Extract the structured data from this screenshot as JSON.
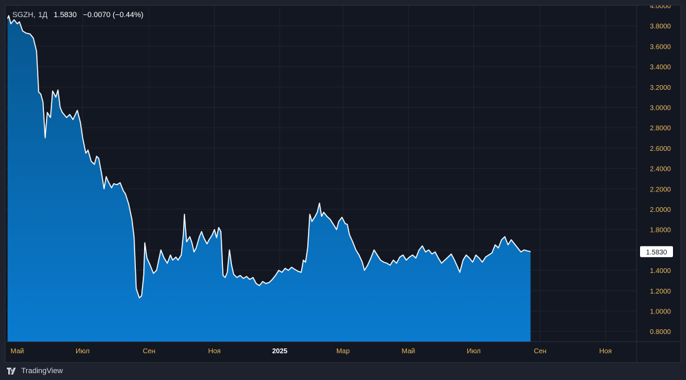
{
  "header": {
    "symbol": "SGZH",
    "interval": "1Д",
    "price": "1.5830",
    "change": "−0.0070 (−0.44%)"
  },
  "footer": {
    "brand": "TradingView"
  },
  "colors": {
    "background": "#131722",
    "line": "#ffffff",
    "fill_top": "#07578f",
    "fill_bottom": "#0a7bd0",
    "axis_text": "#e8b75a",
    "grid": "#1f2330"
  },
  "chart_data": {
    "type": "area",
    "ylim": [
      0.7,
      4.0
    ],
    "y_ticks": [
      "4.0000",
      "3.8000",
      "3.6000",
      "3.4000",
      "3.2000",
      "3.0000",
      "2.8000",
      "2.6000",
      "2.4000",
      "2.2000",
      "2.0000",
      "1.8000",
      "1.6000",
      "1.4000",
      "1.2000",
      "1.0000",
      "0.8000"
    ],
    "x_ticks": [
      "Май",
      "Июл",
      "Сен",
      "Ноя",
      "2025",
      "Мар",
      "Май",
      "Июл",
      "Сен",
      "Ноя"
    ],
    "last_value_label": "1.5830",
    "x_range": [
      "2024-04-20",
      "2025-11-30"
    ],
    "x_tick_dates": [
      "2024-05-01",
      "2024-07-01",
      "2024-09-01",
      "2024-11-01",
      "2025-01-01",
      "2025-03-01",
      "2025-05-01",
      "2025-07-01",
      "2025-09-01",
      "2025-11-01"
    ],
    "series": [
      {
        "points": [
          [
            "2024-04-22",
            3.87
          ],
          [
            "2024-04-23",
            3.9
          ],
          [
            "2024-04-25",
            3.82
          ],
          [
            "2024-04-28",
            3.86
          ],
          [
            "2024-05-01",
            3.82
          ],
          [
            "2024-05-03",
            3.84
          ],
          [
            "2024-05-06",
            3.75
          ],
          [
            "2024-05-09",
            3.73
          ],
          [
            "2024-05-13",
            3.72
          ],
          [
            "2024-05-16",
            3.68
          ],
          [
            "2024-05-19",
            3.55
          ],
          [
            "2024-05-21",
            3.15
          ],
          [
            "2024-05-23",
            3.13
          ],
          [
            "2024-05-25",
            3.05
          ],
          [
            "2024-05-27",
            2.7
          ],
          [
            "2024-05-29",
            2.95
          ],
          [
            "2024-06-01",
            2.9
          ],
          [
            "2024-06-03",
            3.16
          ],
          [
            "2024-06-06",
            3.1
          ],
          [
            "2024-06-08",
            3.17
          ],
          [
            "2024-06-10",
            3.0
          ],
          [
            "2024-06-12",
            2.95
          ],
          [
            "2024-06-16",
            2.9
          ],
          [
            "2024-06-19",
            2.93
          ],
          [
            "2024-06-22",
            2.88
          ],
          [
            "2024-06-26",
            2.97
          ],
          [
            "2024-06-29",
            2.85
          ],
          [
            "2024-07-01",
            2.7
          ],
          [
            "2024-07-04",
            2.55
          ],
          [
            "2024-07-06",
            2.58
          ],
          [
            "2024-07-09",
            2.47
          ],
          [
            "2024-07-12",
            2.44
          ],
          [
            "2024-07-14",
            2.52
          ],
          [
            "2024-07-16",
            2.5
          ],
          [
            "2024-07-19",
            2.33
          ],
          [
            "2024-07-21",
            2.2
          ],
          [
            "2024-07-23",
            2.32
          ],
          [
            "2024-07-25",
            2.27
          ],
          [
            "2024-07-28",
            2.21
          ],
          [
            "2024-07-30",
            2.25
          ],
          [
            "2024-08-02",
            2.24
          ],
          [
            "2024-08-05",
            2.26
          ],
          [
            "2024-08-08",
            2.18
          ],
          [
            "2024-08-10",
            2.15
          ],
          [
            "2024-08-13",
            2.05
          ],
          [
            "2024-08-16",
            1.9
          ],
          [
            "2024-08-18",
            1.73
          ],
          [
            "2024-08-20",
            1.22
          ],
          [
            "2024-08-23",
            1.13
          ],
          [
            "2024-08-25",
            1.15
          ],
          [
            "2024-08-27",
            1.35
          ],
          [
            "2024-08-28",
            1.67
          ],
          [
            "2024-08-30",
            1.52
          ],
          [
            "2024-09-02",
            1.45
          ],
          [
            "2024-09-05",
            1.37
          ],
          [
            "2024-09-08",
            1.4
          ],
          [
            "2024-09-10",
            1.5
          ],
          [
            "2024-09-12",
            1.6
          ],
          [
            "2024-09-15",
            1.52
          ],
          [
            "2024-09-18",
            1.47
          ],
          [
            "2024-09-21",
            1.55
          ],
          [
            "2024-09-23",
            1.5
          ],
          [
            "2024-09-26",
            1.53
          ],
          [
            "2024-09-28",
            1.5
          ],
          [
            "2024-10-01",
            1.55
          ],
          [
            "2024-10-03",
            1.75
          ],
          [
            "2024-10-04",
            1.95
          ],
          [
            "2024-10-06",
            1.68
          ],
          [
            "2024-10-09",
            1.73
          ],
          [
            "2024-10-11",
            1.67
          ],
          [
            "2024-10-13",
            1.58
          ],
          [
            "2024-10-15",
            1.62
          ],
          [
            "2024-10-18",
            1.73
          ],
          [
            "2024-10-20",
            1.78
          ],
          [
            "2024-10-22",
            1.72
          ],
          [
            "2024-10-25",
            1.66
          ],
          [
            "2024-10-27",
            1.7
          ],
          [
            "2024-10-30",
            1.75
          ],
          [
            "2024-11-01",
            1.8
          ],
          [
            "2024-11-03",
            1.72
          ],
          [
            "2024-11-05",
            1.82
          ],
          [
            "2024-11-07",
            1.78
          ],
          [
            "2024-11-09",
            1.35
          ],
          [
            "2024-11-11",
            1.33
          ],
          [
            "2024-11-13",
            1.38
          ],
          [
            "2024-11-15",
            1.6
          ],
          [
            "2024-11-17",
            1.45
          ],
          [
            "2024-11-19",
            1.36
          ],
          [
            "2024-11-22",
            1.33
          ],
          [
            "2024-11-25",
            1.35
          ],
          [
            "2024-11-28",
            1.32
          ],
          [
            "2024-12-01",
            1.34
          ],
          [
            "2024-12-04",
            1.31
          ],
          [
            "2024-12-07",
            1.33
          ],
          [
            "2024-12-10",
            1.27
          ],
          [
            "2024-12-13",
            1.25
          ],
          [
            "2024-12-16",
            1.29
          ],
          [
            "2024-12-19",
            1.27
          ],
          [
            "2024-12-22",
            1.28
          ],
          [
            "2024-12-25",
            1.31
          ],
          [
            "2024-12-28",
            1.35
          ],
          [
            "2024-12-31",
            1.4
          ],
          [
            "2025-01-03",
            1.38
          ],
          [
            "2025-01-06",
            1.42
          ],
          [
            "2025-01-09",
            1.4
          ],
          [
            "2025-01-12",
            1.43
          ],
          [
            "2025-01-15",
            1.41
          ],
          [
            "2025-01-18",
            1.39
          ],
          [
            "2025-01-21",
            1.38
          ],
          [
            "2025-01-23",
            1.5
          ],
          [
            "2025-01-25",
            1.48
          ],
          [
            "2025-01-27",
            1.62
          ],
          [
            "2025-01-29",
            1.95
          ],
          [
            "2025-01-31",
            1.88
          ],
          [
            "2025-02-03",
            1.93
          ],
          [
            "2025-02-05",
            1.97
          ],
          [
            "2025-02-07",
            2.06
          ],
          [
            "2025-02-09",
            1.93
          ],
          [
            "2025-02-11",
            1.97
          ],
          [
            "2025-02-14",
            1.93
          ],
          [
            "2025-02-17",
            1.9
          ],
          [
            "2025-02-20",
            1.85
          ],
          [
            "2025-02-23",
            1.8
          ],
          [
            "2025-02-25",
            1.88
          ],
          [
            "2025-02-28",
            1.92
          ],
          [
            "2025-03-03",
            1.86
          ],
          [
            "2025-03-05",
            1.85
          ],
          [
            "2025-03-07",
            1.75
          ],
          [
            "2025-03-10",
            1.68
          ],
          [
            "2025-03-13",
            1.6
          ],
          [
            "2025-03-16",
            1.55
          ],
          [
            "2025-03-19",
            1.48
          ],
          [
            "2025-03-21",
            1.4
          ],
          [
            "2025-03-24",
            1.45
          ],
          [
            "2025-03-27",
            1.52
          ],
          [
            "2025-03-30",
            1.6
          ],
          [
            "2025-04-02",
            1.55
          ],
          [
            "2025-04-05",
            1.5
          ],
          [
            "2025-04-08",
            1.48
          ],
          [
            "2025-04-11",
            1.47
          ],
          [
            "2025-04-14",
            1.45
          ],
          [
            "2025-04-17",
            1.5
          ],
          [
            "2025-04-20",
            1.47
          ],
          [
            "2025-04-23",
            1.53
          ],
          [
            "2025-04-26",
            1.55
          ],
          [
            "2025-04-29",
            1.5
          ],
          [
            "2025-05-02",
            1.53
          ],
          [
            "2025-05-05",
            1.55
          ],
          [
            "2025-05-08",
            1.52
          ],
          [
            "2025-05-11",
            1.6
          ],
          [
            "2025-05-14",
            1.64
          ],
          [
            "2025-05-17",
            1.58
          ],
          [
            "2025-05-20",
            1.6
          ],
          [
            "2025-05-23",
            1.56
          ],
          [
            "2025-05-26",
            1.58
          ],
          [
            "2025-05-29",
            1.52
          ],
          [
            "2025-06-01",
            1.47
          ],
          [
            "2025-06-04",
            1.5
          ],
          [
            "2025-06-07",
            1.53
          ],
          [
            "2025-06-10",
            1.56
          ],
          [
            "2025-06-13",
            1.5
          ],
          [
            "2025-06-16",
            1.43
          ],
          [
            "2025-06-18",
            1.38
          ],
          [
            "2025-06-21",
            1.5
          ],
          [
            "2025-06-24",
            1.55
          ],
          [
            "2025-06-27",
            1.52
          ],
          [
            "2025-06-30",
            1.48
          ],
          [
            "2025-07-03",
            1.55
          ],
          [
            "2025-07-06",
            1.52
          ],
          [
            "2025-07-09",
            1.48
          ],
          [
            "2025-07-12",
            1.53
          ],
          [
            "2025-07-15",
            1.55
          ],
          [
            "2025-07-18",
            1.57
          ],
          [
            "2025-07-21",
            1.65
          ],
          [
            "2025-07-24",
            1.62
          ],
          [
            "2025-07-27",
            1.7
          ],
          [
            "2025-07-30",
            1.73
          ],
          [
            "2025-08-02",
            1.65
          ],
          [
            "2025-08-05",
            1.7
          ],
          [
            "2025-08-08",
            1.66
          ],
          [
            "2025-08-11",
            1.62
          ],
          [
            "2025-08-14",
            1.58
          ],
          [
            "2025-08-17",
            1.6
          ],
          [
            "2025-08-20",
            1.59
          ],
          [
            "2025-08-23",
            1.583
          ]
        ]
      }
    ]
  }
}
